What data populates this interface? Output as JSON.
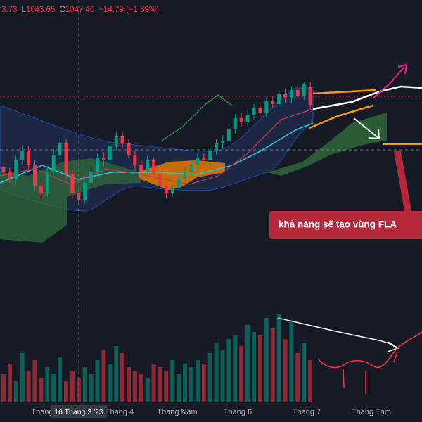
{
  "chart_data": {
    "type": "candlestick",
    "header": [
      {
        "value": "3.73"
      },
      {
        "label": "L",
        "value": "1043.65"
      },
      {
        "label": "C",
        "value": "1047.40"
      },
      {
        "value": "−14.79 (−1.39%)"
      }
    ],
    "up_color": "#089981",
    "down_color": "#f23645",
    "open": [
      1003,
      1000,
      995,
      1008,
      1015,
      1005,
      990,
      985,
      1000,
      1012,
      1020,
      998,
      985,
      980,
      992,
      1000,
      1010,
      1008,
      1018,
      1025,
      1020,
      1012,
      1005,
      1000,
      1008,
      998,
      990,
      985,
      988,
      995,
      1000,
      1005,
      1010,
      1008,
      1015,
      1020,
      1022,
      1030,
      1038,
      1035,
      1040,
      1045,
      1042,
      1050,
      1048,
      1055,
      1052,
      1058,
      1054,
      1060
    ],
    "high": [
      1006,
      1003,
      1011,
      1019,
      1018,
      1008,
      993,
      1004,
      1016,
      1024,
      1023,
      1001,
      988,
      995,
      1004,
      1013,
      1014,
      1021,
      1029,
      1028,
      1023,
      1015,
      1008,
      1011,
      1010,
      1001,
      993,
      991,
      998,
      1003,
      1008,
      1013,
      1013,
      1018,
      1023,
      1026,
      1033,
      1041,
      1042,
      1044,
      1048,
      1049,
      1053,
      1054,
      1058,
      1059,
      1061,
      1062,
      1064,
      1063.73
    ],
    "low": [
      997,
      991,
      992,
      1005,
      1001,
      986,
      980,
      982,
      997,
      1009,
      995,
      981,
      976,
      977,
      989,
      997,
      1004,
      1005,
      1015,
      1016,
      1009,
      1001,
      996,
      997,
      994,
      986,
      981,
      982,
      985,
      992,
      997,
      1002,
      1005,
      1005,
      1012,
      1017,
      1019,
      1027,
      1032,
      1032,
      1037,
      1039,
      1039,
      1045,
      1045,
      1049,
      1049,
      1051,
      1051,
      1043.65
    ],
    "close": [
      1000,
      995,
      1008,
      1015,
      1005,
      990,
      985,
      1000,
      1012,
      1020,
      998,
      985,
      980,
      992,
      1000,
      1010,
      1008,
      1018,
      1025,
      1020,
      1012,
      1005,
      1000,
      1008,
      998,
      990,
      985,
      988,
      995,
      1000,
      1005,
      1010,
      1008,
      1015,
      1020,
      1022,
      1030,
      1038,
      1035,
      1040,
      1045,
      1042,
      1050,
      1048,
      1055,
      1052,
      1058,
      1054,
      1062.19,
      1047.4
    ],
    "volume": [
      40,
      55,
      30,
      70,
      45,
      60,
      35,
      50,
      40,
      65,
      30,
      45,
      35,
      50,
      40,
      60,
      75,
      55,
      80,
      70,
      50,
      45,
      40,
      35,
      55,
      50,
      45,
      60,
      40,
      55,
      50,
      60,
      55,
      70,
      85,
      75,
      90,
      95,
      80,
      110,
      100,
      95,
      120,
      105,
      125,
      90,
      115,
      70,
      85,
      60
    ],
    "x_labels": [
      "Tháng",
      "Tháng 4",
      "Tháng Năm",
      "Tháng 6",
      "Tháng 7",
      "Tháng Tám"
    ],
    "crosshair_label": "16 Tháng 3 '23",
    "annotation": "khả năng sẽ tạo vùng FLA"
  }
}
